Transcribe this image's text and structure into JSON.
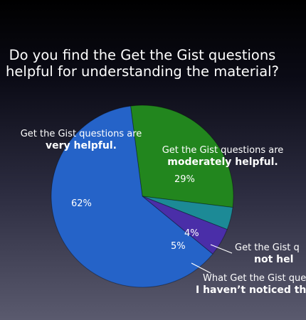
{
  "chart_data": {
    "type": "pie",
    "title_line1": "Do you find the Get the Gist questions",
    "title_line2": "helpful for understanding the material?",
    "slices": [
      {
        "label_line1": "Get the Gist questions are",
        "label_line2": "very helpful.",
        "value": 62,
        "pct_label": "62%",
        "color": "#2563c8"
      },
      {
        "label_line1": "Get the Gist questions are",
        "label_line2": "moderately helpful.",
        "value": 29,
        "pct_label": "29%",
        "color": "#22861e"
      },
      {
        "label_line1": "Get the Gist q",
        "label_line2": "not hel",
        "value": 4,
        "pct_label": "4%",
        "color": "#1c8a96"
      },
      {
        "label_line1": "What Get the Gist ques",
        "label_line2": "I haven’t noticed th",
        "value": 5,
        "pct_label": "5%",
        "color": "#4a2ea8"
      }
    ]
  }
}
